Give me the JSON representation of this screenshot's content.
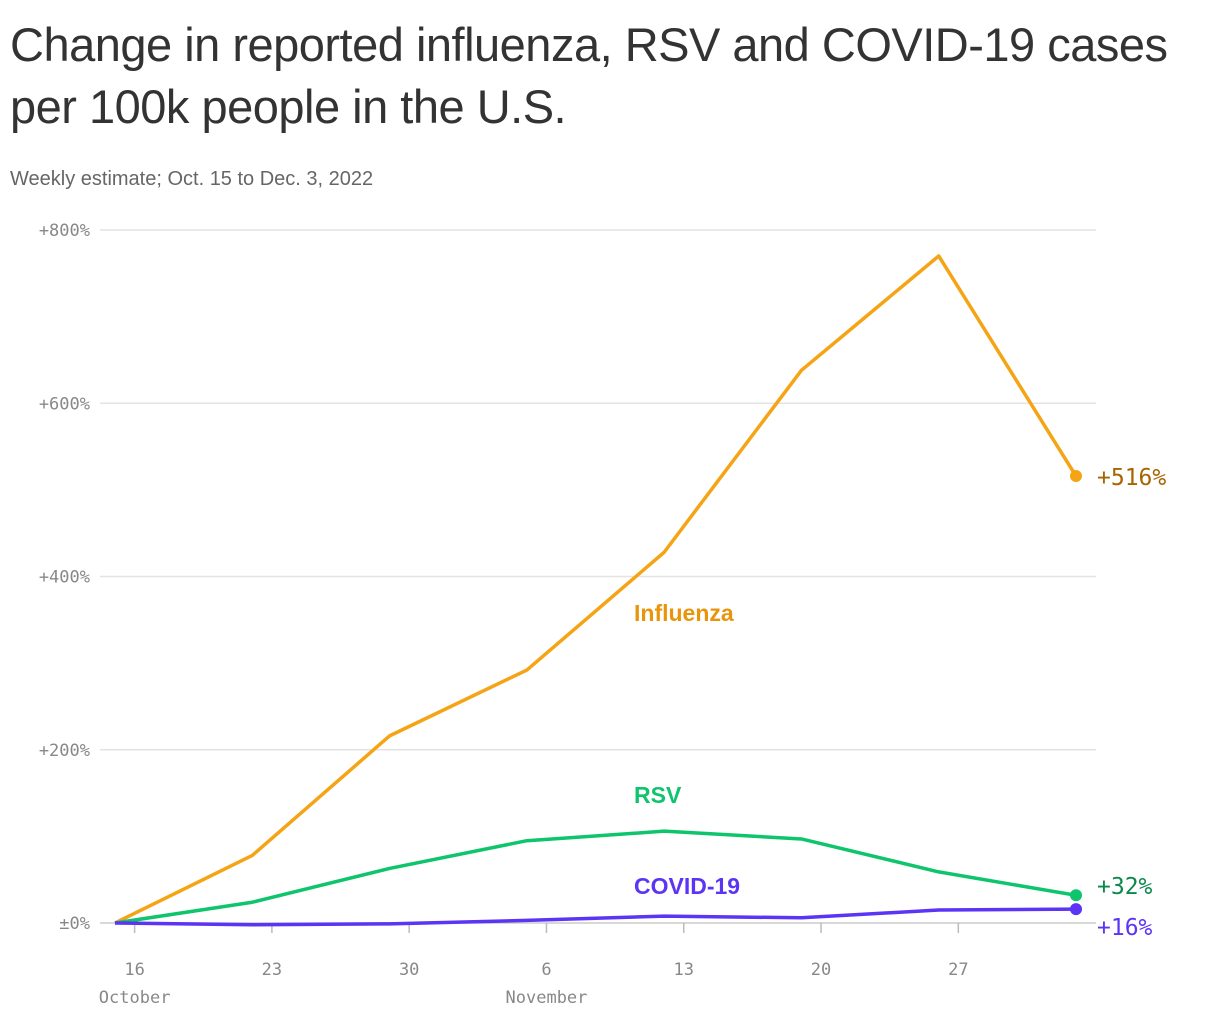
{
  "title": "Change in reported influenza, RSV and COVID-19 cases per 100k people in the U.S.",
  "subtitle": "Weekly estimate; Oct. 15 to Dec. 3, 2022",
  "chart_data": {
    "type": "line",
    "x": [
      "2022-10-15",
      "2022-10-22",
      "2022-10-29",
      "2022-11-05",
      "2022-11-12",
      "2022-11-19",
      "2022-11-26",
      "2022-12-03"
    ],
    "ylim": [
      0,
      800
    ],
    "yticks": [
      0,
      200,
      400,
      600,
      800
    ],
    "ytick_labels": [
      "±0%",
      "+200%",
      "+400%",
      "+600%",
      "+800%"
    ],
    "xtick_labels": [
      "16",
      "23",
      "30",
      "6",
      "13",
      "20",
      "27"
    ],
    "xtick_dates": [
      "2022-10-16",
      "2022-10-23",
      "2022-10-30",
      "2022-11-06",
      "2022-11-13",
      "2022-11-20",
      "2022-11-27"
    ],
    "month_labels": [
      {
        "label": "October",
        "date": "2022-10-16"
      },
      {
        "label": "November",
        "date": "2022-11-06"
      }
    ],
    "grid": true,
    "series": [
      {
        "name": "Influenza",
        "color": "#f5a416",
        "label_color": "#a86400",
        "end_label": "+516%",
        "values": [
          0,
          78,
          216,
          292,
          428,
          638,
          770,
          516
        ]
      },
      {
        "name": "RSV",
        "color": "#0ec46c",
        "label_color": "#0a8a4a",
        "end_label": "+32%",
        "values": [
          0,
          24,
          63,
          95,
          106,
          97,
          59,
          32
        ]
      },
      {
        "name": "COVID-19",
        "color": "#5b34f5",
        "label_color": "#5b34f5",
        "end_label": "+16%",
        "values": [
          0,
          -2,
          -1,
          3,
          8,
          6,
          15,
          16
        ]
      }
    ]
  }
}
